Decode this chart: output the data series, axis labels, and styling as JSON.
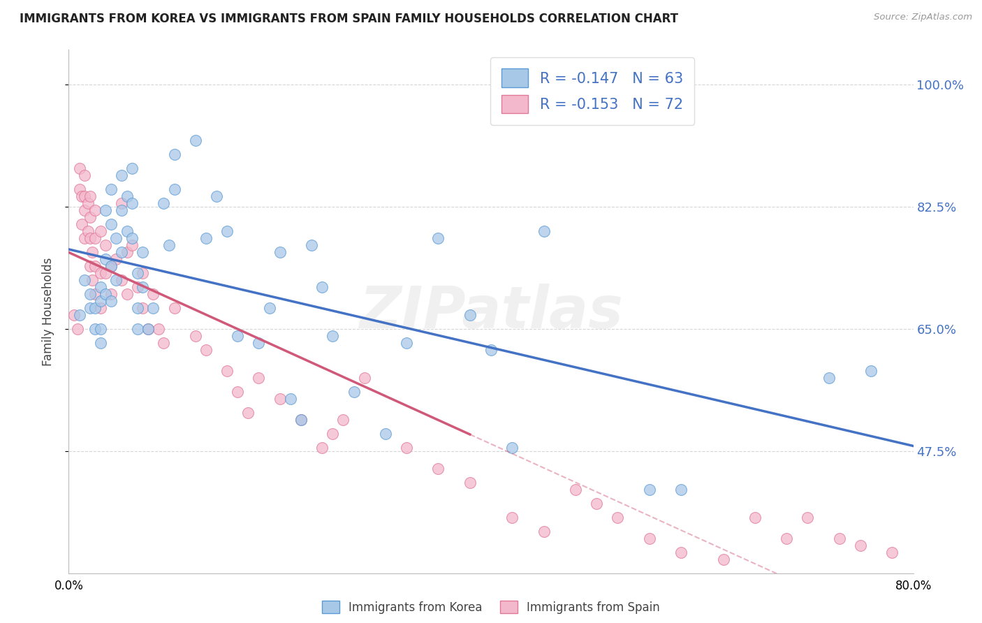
{
  "title": "IMMIGRANTS FROM KOREA VS IMMIGRANTS FROM SPAIN FAMILY HOUSEHOLDS CORRELATION CHART",
  "source": "Source: ZipAtlas.com",
  "ylabel": "Family Households",
  "ytick_values": [
    0.475,
    0.65,
    0.825,
    1.0
  ],
  "ytick_labels": [
    "47.5%",
    "65.0%",
    "82.5%",
    "100.0%"
  ],
  "xlim": [
    0.0,
    0.8
  ],
  "ylim": [
    0.3,
    1.05
  ],
  "korea_R": "-0.147",
  "korea_N": "63",
  "spain_R": "-0.153",
  "spain_N": "72",
  "korea_color": "#a8c8e8",
  "spain_color": "#f4b8cc",
  "korea_edge_color": "#5b9bd5",
  "spain_edge_color": "#e07898",
  "korea_line_color": "#4472c4",
  "spain_line_color": "#d05878",
  "watermark": "ZIPatlas",
  "legend_text_color": "#4472c4",
  "korea_points_x": [
    0.01,
    0.015,
    0.02,
    0.02,
    0.025,
    0.025,
    0.03,
    0.03,
    0.03,
    0.03,
    0.035,
    0.035,
    0.035,
    0.04,
    0.04,
    0.04,
    0.04,
    0.045,
    0.045,
    0.05,
    0.05,
    0.05,
    0.055,
    0.055,
    0.06,
    0.06,
    0.06,
    0.065,
    0.065,
    0.065,
    0.07,
    0.07,
    0.075,
    0.08,
    0.09,
    0.095,
    0.1,
    0.1,
    0.12,
    0.13,
    0.14,
    0.15,
    0.16,
    0.18,
    0.19,
    0.2,
    0.21,
    0.22,
    0.23,
    0.24,
    0.25,
    0.27,
    0.3,
    0.32,
    0.35,
    0.38,
    0.4,
    0.42,
    0.45,
    0.55,
    0.58,
    0.72,
    0.76
  ],
  "korea_points_y": [
    0.67,
    0.72,
    0.68,
    0.7,
    0.68,
    0.65,
    0.71,
    0.69,
    0.65,
    0.63,
    0.82,
    0.75,
    0.7,
    0.85,
    0.8,
    0.74,
    0.69,
    0.78,
    0.72,
    0.87,
    0.82,
    0.76,
    0.84,
    0.79,
    0.88,
    0.83,
    0.78,
    0.73,
    0.68,
    0.65,
    0.76,
    0.71,
    0.65,
    0.68,
    0.83,
    0.77,
    0.9,
    0.85,
    0.92,
    0.78,
    0.84,
    0.79,
    0.64,
    0.63,
    0.68,
    0.76,
    0.55,
    0.52,
    0.77,
    0.71,
    0.64,
    0.56,
    0.5,
    0.63,
    0.78,
    0.67,
    0.62,
    0.48,
    0.79,
    0.42,
    0.42,
    0.58,
    0.59
  ],
  "spain_points_x": [
    0.005,
    0.008,
    0.01,
    0.01,
    0.012,
    0.012,
    0.015,
    0.015,
    0.015,
    0.015,
    0.018,
    0.018,
    0.02,
    0.02,
    0.02,
    0.02,
    0.022,
    0.022,
    0.025,
    0.025,
    0.025,
    0.025,
    0.03,
    0.03,
    0.03,
    0.035,
    0.035,
    0.04,
    0.04,
    0.045,
    0.05,
    0.05,
    0.055,
    0.055,
    0.06,
    0.065,
    0.07,
    0.07,
    0.075,
    0.08,
    0.085,
    0.09,
    0.1,
    0.12,
    0.13,
    0.15,
    0.16,
    0.17,
    0.18,
    0.2,
    0.22,
    0.24,
    0.25,
    0.26,
    0.28,
    0.32,
    0.35,
    0.38,
    0.42,
    0.45,
    0.48,
    0.5,
    0.52,
    0.55,
    0.58,
    0.62,
    0.65,
    0.68,
    0.7,
    0.73,
    0.75,
    0.78
  ],
  "spain_points_y": [
    0.67,
    0.65,
    0.88,
    0.85,
    0.84,
    0.8,
    0.87,
    0.84,
    0.82,
    0.78,
    0.83,
    0.79,
    0.84,
    0.81,
    0.78,
    0.74,
    0.76,
    0.72,
    0.82,
    0.78,
    0.74,
    0.7,
    0.79,
    0.73,
    0.68,
    0.77,
    0.73,
    0.74,
    0.7,
    0.75,
    0.83,
    0.72,
    0.76,
    0.7,
    0.77,
    0.71,
    0.73,
    0.68,
    0.65,
    0.7,
    0.65,
    0.63,
    0.68,
    0.64,
    0.62,
    0.59,
    0.56,
    0.53,
    0.58,
    0.55,
    0.52,
    0.48,
    0.5,
    0.52,
    0.58,
    0.48,
    0.45,
    0.43,
    0.38,
    0.36,
    0.42,
    0.4,
    0.38,
    0.35,
    0.33,
    0.32,
    0.38,
    0.35,
    0.38,
    0.35,
    0.34,
    0.33
  ]
}
